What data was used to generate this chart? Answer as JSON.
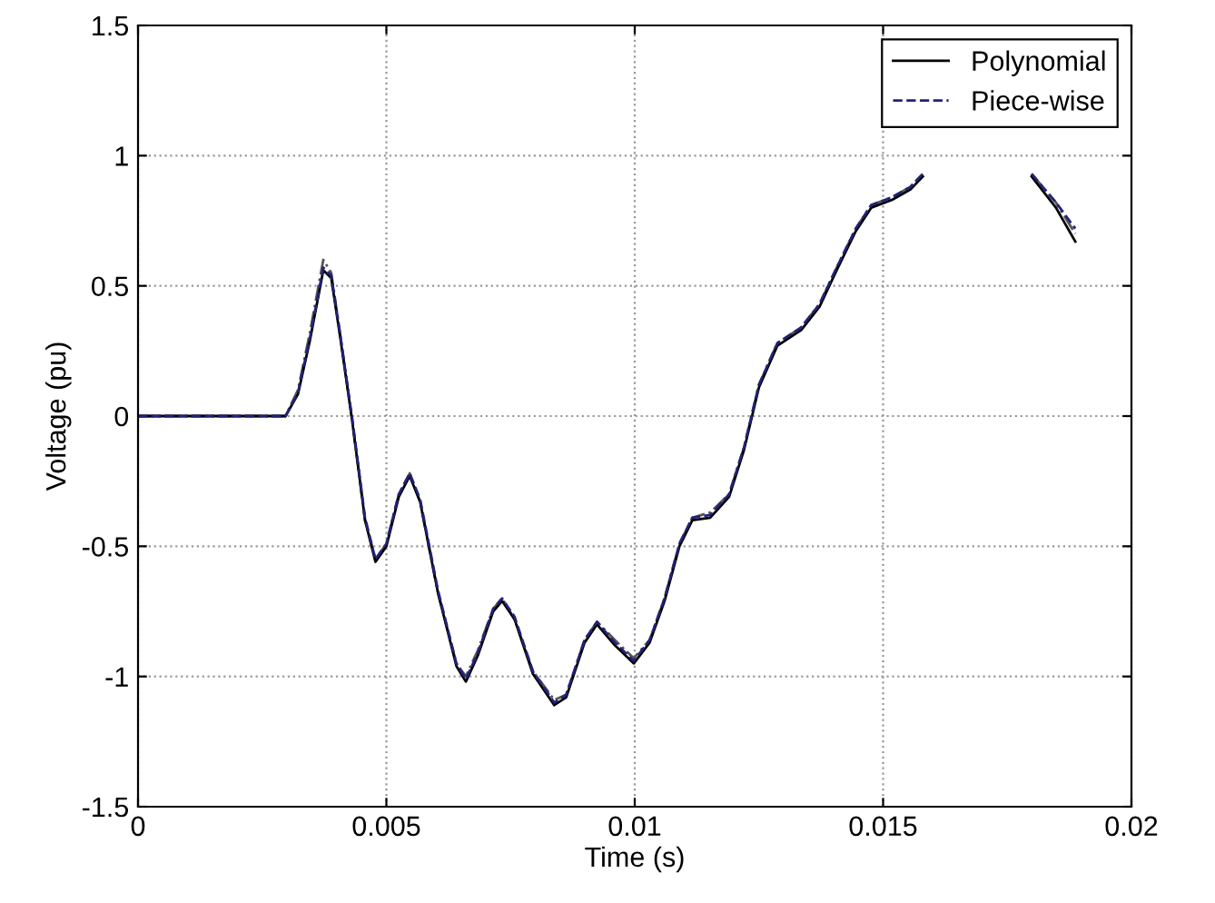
{
  "chart_data": {
    "type": "line",
    "xlabel": "Time (s)",
    "ylabel": "Voltage (pu)",
    "xlim": [
      0,
      0.02
    ],
    "xticks": [
      0,
      0.005,
      0.01,
      0.015,
      0.02
    ],
    "ylim": [
      -1.5,
      1.5
    ],
    "yticks": [
      -1.5,
      -1,
      -0.5,
      0,
      0.5,
      1,
      1.5
    ],
    "grid": true,
    "legend": "top right",
    "x": [
      0,
      0.00297,
      0.00322,
      0.00346,
      0.00373,
      0.00389,
      0.00408,
      0.00432,
      0.00457,
      0.00478,
      0.005,
      0.00525,
      0.00547,
      0.00568,
      0.00604,
      0.00641,
      0.0066,
      0.00684,
      0.00715,
      0.00733,
      0.00758,
      0.00795,
      0.00838,
      0.00862,
      0.00899,
      0.00924,
      0.0096,
      0.00998,
      0.0103,
      0.0106,
      0.0109,
      0.01116,
      0.01152,
      0.0119,
      0.0122,
      0.0125,
      0.01287,
      0.01335,
      0.01372,
      0.01409,
      0.01445,
      0.01476,
      0.01518,
      0.01555,
      0.0158,
      0.0169,
      0.01799,
      0.01848,
      0.01887
    ],
    "series": [
      {
        "color": "#555555",
        "line_style": "dashdot",
        "values": [
          0,
          0,
          0.1,
          0.32,
          0.6,
          0.55,
          0.3,
          -0.03,
          -0.4,
          -0.55,
          -0.49,
          -0.3,
          -0.22,
          -0.33,
          -0.68,
          -0.95,
          -1.0,
          -0.9,
          -0.74,
          -0.7,
          -0.78,
          -0.98,
          -1.09,
          -1.07,
          -0.86,
          -0.79,
          -0.86,
          -0.93,
          -0.86,
          -0.7,
          -0.49,
          -0.39,
          -0.37,
          -0.3,
          -0.12,
          0.12,
          0.28,
          0.34,
          0.43,
          0.58,
          0.72,
          0.81,
          0.84,
          0.88,
          0.93,
          null,
          0.93,
          0.82,
          0.7
        ]
      },
      {
        "name": "Polynomial",
        "color": "#000000",
        "line_style": "solid",
        "values": [
          0,
          0,
          0.084,
          0.29,
          0.56,
          0.53,
          0.29,
          -0.03,
          -0.4,
          -0.56,
          -0.5,
          -0.31,
          -0.23,
          -0.33,
          -0.68,
          -0.96,
          -1.02,
          -0.92,
          -0.75,
          -0.71,
          -0.78,
          -0.99,
          -1.11,
          -1.08,
          -0.87,
          -0.8,
          -0.88,
          -0.95,
          -0.87,
          -0.71,
          -0.5,
          -0.4,
          -0.39,
          -0.31,
          -0.13,
          0.11,
          0.27,
          0.33,
          0.42,
          0.57,
          0.71,
          0.8,
          0.83,
          0.87,
          0.92,
          null,
          0.92,
          0.8,
          0.67
        ]
      },
      {
        "name": "Piece-wise",
        "color": "#22227a",
        "line_style": "dashed",
        "values": [
          0,
          0,
          0.09,
          0.3,
          0.57,
          0.54,
          0.3,
          -0.02,
          -0.39,
          -0.55,
          -0.49,
          -0.3,
          -0.22,
          -0.32,
          -0.67,
          -0.95,
          -1.01,
          -0.91,
          -0.74,
          -0.7,
          -0.77,
          -0.98,
          -1.1,
          -1.07,
          -0.86,
          -0.79,
          -0.87,
          -0.94,
          -0.86,
          -0.7,
          -0.49,
          -0.39,
          -0.38,
          -0.3,
          -0.12,
          0.12,
          0.28,
          0.34,
          0.43,
          0.58,
          0.72,
          0.81,
          0.84,
          0.88,
          0.93,
          null,
          0.93,
          0.82,
          0.72
        ]
      }
    ]
  }
}
